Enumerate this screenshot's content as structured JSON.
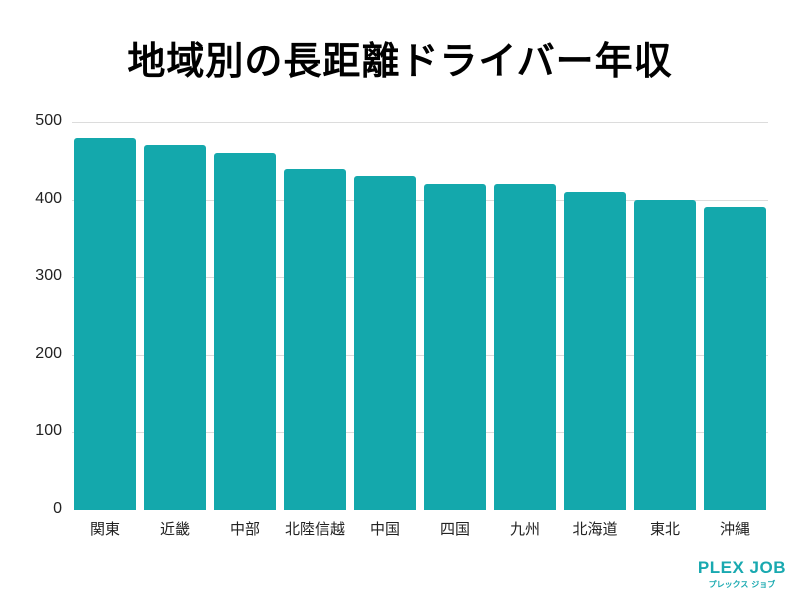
{
  "title": "地域別の長距離ドライバー年収",
  "chart_data": {
    "type": "bar",
    "title": "地域別の長距離ドライバー年収",
    "xlabel": "",
    "ylabel": "",
    "categories": [
      "関東",
      "近畿",
      "中部",
      "北陸信越",
      "中国",
      "四国",
      "九州",
      "北海道",
      "東北",
      "沖縄"
    ],
    "values": [
      480,
      470,
      460,
      440,
      430,
      420,
      420,
      410,
      400,
      390
    ],
    "ylim": [
      0,
      500
    ],
    "yticks": [
      0,
      100,
      200,
      300,
      400,
      500
    ],
    "grid": true,
    "legend": null,
    "bar_color": "#14a8ac"
  },
  "yticks": [
    "0",
    "100",
    "200",
    "300",
    "400",
    "500"
  ],
  "xlabels": [
    "関東",
    "近畿",
    "中部",
    "北陸信越",
    "中国",
    "四国",
    "九州",
    "北海道",
    "東北",
    "沖縄"
  ],
  "logo": {
    "name": "PLEX JOB",
    "kana": "プレックス ジョブ",
    "color": "#19a9b0"
  }
}
